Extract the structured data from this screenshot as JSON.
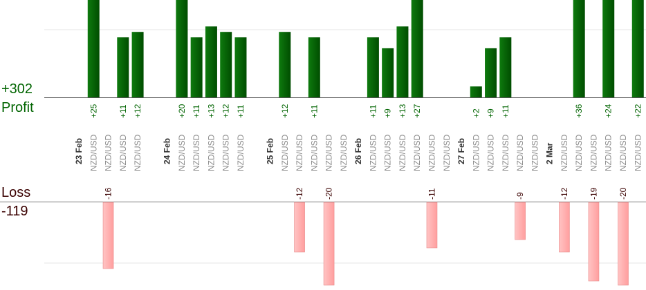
{
  "summary": {
    "profit_total": "+302",
    "profit_label": "Profit",
    "loss_label": "Loss",
    "loss_total": "-119"
  },
  "colors": {
    "profit_bar": "#0a6e0a",
    "profit_bar_dark": "#004d00",
    "profit_text": "#006400",
    "loss_bar": "#ffb6b6",
    "loss_bar_edge": "#e88a8a",
    "loss_text": "#3a0000",
    "pair_text": "#8a8a8a",
    "date_text": "#333333"
  },
  "chart_data": {
    "type": "bar",
    "title": "",
    "pair": "NZD/USD",
    "dates": [
      {
        "label": "23 Feb",
        "slot": 0
      },
      {
        "label": "24 Feb",
        "slot": 6
      },
      {
        "label": "25 Feb",
        "slot": 13
      },
      {
        "label": "26 Feb",
        "slot": 19
      },
      {
        "label": "27 Feb",
        "slot": 26
      },
      {
        "label": "2 Mar",
        "slot": 32
      }
    ],
    "trades": [
      {
        "slot": 1,
        "value": 25,
        "label": "+25"
      },
      {
        "slot": 2,
        "value": -16,
        "label": "-16"
      },
      {
        "slot": 3,
        "value": 11,
        "label": "+11"
      },
      {
        "slot": 4,
        "value": 12,
        "label": "+12"
      },
      {
        "slot": 7,
        "value": 20,
        "label": "+20"
      },
      {
        "slot": 8,
        "value": 11,
        "label": "+11"
      },
      {
        "slot": 9,
        "value": 13,
        "label": "+13"
      },
      {
        "slot": 10,
        "value": 12,
        "label": "+12"
      },
      {
        "slot": 11,
        "value": 11,
        "label": "+11"
      },
      {
        "slot": 14,
        "value": 12,
        "label": "+12"
      },
      {
        "slot": 15,
        "value": -12,
        "label": "-12"
      },
      {
        "slot": 16,
        "value": 11,
        "label": "+11"
      },
      {
        "slot": 17,
        "value": -20,
        "label": "-20"
      },
      {
        "slot": 18,
        "value": null,
        "label": ""
      },
      {
        "slot": 20,
        "value": 11,
        "label": "+11"
      },
      {
        "slot": 21,
        "value": 9,
        "label": "+9"
      },
      {
        "slot": 22,
        "value": 13,
        "label": "+13"
      },
      {
        "slot": 23,
        "value": 27,
        "label": "+27"
      },
      {
        "slot": 24,
        "value": -11,
        "label": "-11"
      },
      {
        "slot": 25,
        "value": null,
        "label": ""
      },
      {
        "slot": 27,
        "value": 2,
        "label": "+2"
      },
      {
        "slot": 28,
        "value": 9,
        "label": "+9"
      },
      {
        "slot": 29,
        "value": 11,
        "label": "+11"
      },
      {
        "slot": 30,
        "value": -9,
        "label": "-9"
      },
      {
        "slot": 31,
        "value": null,
        "label": ""
      },
      {
        "slot": 33,
        "value": -12,
        "label": "-12"
      },
      {
        "slot": 34,
        "value": 36,
        "label": "+36"
      },
      {
        "slot": 35,
        "value": -19,
        "label": "-19"
      },
      {
        "slot": 36,
        "value": 24,
        "label": "+24"
      },
      {
        "slot": 37,
        "value": -20,
        "label": "-20"
      },
      {
        "slot": 38,
        "value": 22,
        "label": "+22"
      }
    ],
    "profit_ylim": [
      0,
      13
    ],
    "loss_ylim": [
      0,
      12
    ],
    "grid": true,
    "legend": "none"
  }
}
